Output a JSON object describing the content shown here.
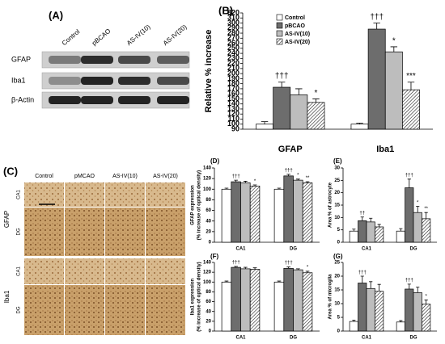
{
  "blot": {
    "title": "(A)",
    "lanes": [
      "Control",
      "pBCAO",
      "AS-IV(10)",
      "AS-IV(20)"
    ],
    "rows": [
      "GFAP",
      "Iba1",
      "β-Actin"
    ]
  },
  "ihc": {
    "title": "(C)",
    "columns": [
      "Control",
      "pMCAO",
      "AS-IV(10)",
      "AS-IV(20)"
    ],
    "groups": [
      {
        "name": "GFAP",
        "rows": [
          "CA1",
          "DG"
        ]
      },
      {
        "name": "Iba1",
        "rows": [
          "CA1",
          "DG"
        ]
      }
    ]
  },
  "chart_data": [
    {
      "type": "bar",
      "title": "(B)",
      "ylabel": [
        "Relative % increase"
      ],
      "categories": [
        "GFAP",
        "Iba1"
      ],
      "ylim": [
        90,
        320
      ],
      "yticks": [
        90,
        100,
        110,
        120,
        130,
        140,
        150,
        160,
        170,
        180,
        190,
        200,
        210,
        220,
        230,
        240,
        250,
        260,
        270,
        280,
        290,
        300,
        310,
        320
      ],
      "legend": true,
      "series": [
        {
          "name": "Control",
          "color": "#ffffff",
          "values": [
            100,
            100
          ],
          "errors": [
            5,
            2
          ],
          "labels": [
            null,
            null
          ]
        },
        {
          "name": "pBCAO",
          "color": "#6d6d6d",
          "values": [
            173,
            288
          ],
          "errors": [
            10,
            12
          ],
          "labels": [
            "†††",
            "†††"
          ]
        },
        {
          "name": "AS-IV(10)",
          "color": "#bdbdbd",
          "values": [
            158,
            243
          ],
          "errors": [
            12,
            10
          ],
          "labels": [
            null,
            "*"
          ]
        },
        {
          "name": "AS-IV(20)",
          "color": "#ffffff",
          "hatch": true,
          "values": [
            143,
            168
          ],
          "errors": [
            7,
            15
          ],
          "labels": [
            "*",
            "***"
          ]
        }
      ]
    },
    {
      "type": "bar",
      "title": "(D)",
      "ylabel": [
        "GFAP expression",
        "(% increase of optical density)"
      ],
      "categories": [
        "CA1",
        "DG"
      ],
      "ylim": [
        0,
        140
      ],
      "yticks": [
        0,
        20,
        40,
        60,
        80,
        100,
        120,
        140
      ],
      "legend": false,
      "series": [
        {
          "color": "#ffffff",
          "values": [
            100,
            100
          ],
          "errors": [
            2,
            2
          ],
          "labels": [
            null,
            null
          ]
        },
        {
          "color": "#6d6d6d",
          "values": [
            114,
            125
          ],
          "errors": [
            3,
            3
          ],
          "labels": [
            "†††",
            "†††"
          ]
        },
        {
          "color": "#bdbdbd",
          "values": [
            112,
            117
          ],
          "errors": [
            3,
            2
          ],
          "labels": [
            null,
            "*"
          ]
        },
        {
          "color": "#ffffff",
          "hatch": true,
          "values": [
            106,
            112
          ],
          "errors": [
            2,
            2
          ],
          "labels": [
            "*",
            "**"
          ]
        }
      ]
    },
    {
      "type": "bar",
      "title": "(E)",
      "ylabel": [
        "Area % of astrocyte"
      ],
      "categories": [
        "CA1",
        "DG"
      ],
      "ylim": [
        0,
        30
      ],
      "yticks": [
        0,
        5,
        10,
        15,
        20,
        25,
        30
      ],
      "legend": false,
      "series": [
        {
          "color": "#ffffff",
          "values": [
            4.5,
            4.5
          ],
          "errors": [
            0.8,
            1
          ],
          "labels": [
            null,
            null
          ]
        },
        {
          "color": "#6d6d6d",
          "values": [
            8.7,
            22
          ],
          "errors": [
            1.5,
            3.5
          ],
          "labels": [
            "††",
            "†††"
          ]
        },
        {
          "color": "#bdbdbd",
          "values": [
            8.2,
            12
          ],
          "errors": [
            1.5,
            2.5
          ],
          "labels": [
            null,
            "*"
          ]
        },
        {
          "color": "#ffffff",
          "hatch": true,
          "values": [
            6.2,
            9.5
          ],
          "errors": [
            1,
            2.5
          ],
          "labels": [
            null,
            "**"
          ]
        }
      ]
    },
    {
      "type": "bar",
      "title": "(F)",
      "ylabel": [
        "Iba1 expression",
        "(% increase of optical density)"
      ],
      "categories": [
        "CA1",
        "DG"
      ],
      "ylim": [
        0,
        140
      ],
      "yticks": [
        0,
        20,
        40,
        60,
        80,
        100,
        120,
        140
      ],
      "legend": false,
      "series": [
        {
          "color": "#ffffff",
          "values": [
            100,
            100
          ],
          "errors": [
            2,
            2
          ],
          "labels": [
            null,
            null
          ]
        },
        {
          "color": "#6d6d6d",
          "values": [
            130,
            128
          ],
          "errors": [
            2,
            3
          ],
          "labels": [
            "†††",
            "†††"
          ]
        },
        {
          "color": "#bdbdbd",
          "values": [
            127,
            125
          ],
          "errors": [
            3,
            2
          ],
          "labels": [
            null,
            null
          ]
        },
        {
          "color": "#ffffff",
          "hatch": true,
          "values": [
            126,
            119
          ],
          "errors": [
            3,
            3
          ],
          "labels": [
            null,
            "*"
          ]
        }
      ]
    },
    {
      "type": "bar",
      "title": "(G)",
      "ylabel": [
        "Area % of microglia"
      ],
      "categories": [
        "CA1",
        "DG"
      ],
      "ylim": [
        0,
        25
      ],
      "yticks": [
        0,
        5,
        10,
        15,
        20,
        25
      ],
      "legend": false,
      "series": [
        {
          "color": "#ffffff",
          "values": [
            3.5,
            3.3
          ],
          "errors": [
            0.5,
            0.5
          ],
          "labels": [
            null,
            null
          ]
        },
        {
          "color": "#6d6d6d",
          "values": [
            17.5,
            15.3
          ],
          "errors": [
            2.5,
            1.8
          ],
          "labels": [
            "†††",
            "†††"
          ]
        },
        {
          "color": "#bdbdbd",
          "values": [
            15.5,
            14
          ],
          "errors": [
            2.5,
            2
          ],
          "labels": [
            null,
            null
          ]
        },
        {
          "color": "#ffffff",
          "hatch": true,
          "values": [
            14.5,
            9.8
          ],
          "errors": [
            2.5,
            1.5
          ],
          "labels": [
            null,
            "*"
          ]
        }
      ]
    }
  ]
}
